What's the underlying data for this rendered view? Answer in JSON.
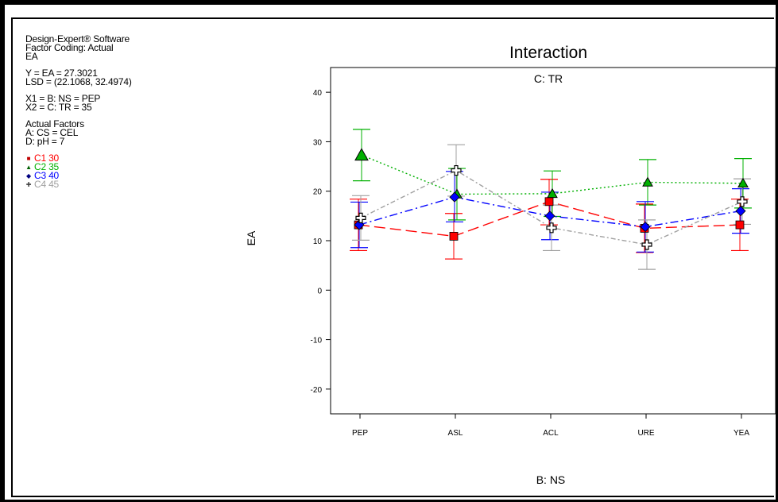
{
  "info": {
    "lines_top": [
      "Design-Expert® Software",
      "Factor Coding: Actual",
      "EA"
    ],
    "lines_y": [
      "Y = EA = 27.3021",
      "LSD = (22.1068, 32.4974)"
    ],
    "lines_x": [
      "X1 = B: NS = PEP",
      "X2 = C: TR = 35"
    ],
    "lines_factors": [
      "Actual Factors",
      "A: CS = CEL",
      "D: pH = 7"
    ]
  },
  "legend": [
    {
      "label": "C1 30",
      "color": "#ff0000",
      "marker": "square"
    },
    {
      "label": "C2 35",
      "color": "#00b000",
      "marker": "triangle"
    },
    {
      "label": "C3 40",
      "color": "#0000ff",
      "marker": "diamond"
    },
    {
      "label": "C4 45",
      "color": "#a0a0a0",
      "marker": "cross"
    }
  ],
  "chart_data": {
    "type": "line",
    "title": "Interaction",
    "subtitle": "C: TR",
    "xlabel": "B: NS",
    "ylabel": "EA",
    "categories": [
      "PEP",
      "ASL",
      "ACL",
      "URE",
      "YEA"
    ],
    "ylim": [
      -25,
      45
    ],
    "yticks": [
      -20,
      -10,
      0,
      10,
      20,
      30,
      40
    ],
    "series": [
      {
        "name": "C1 30",
        "color": "#ff0000",
        "marker": "square",
        "dash": "14 6",
        "values": [
          13.2,
          10.9,
          17.9,
          12.5,
          13.2
        ],
        "lower": [
          8.0,
          6.3,
          13.2,
          7.6,
          8.0
        ],
        "upper": [
          18.4,
          15.5,
          22.4,
          17.4,
          18.4
        ]
      },
      {
        "name": "C2 35",
        "color": "#00b000",
        "marker": "triangle",
        "dash": "2 3",
        "values": [
          27.3,
          19.4,
          19.5,
          21.8,
          21.6
        ],
        "lower": [
          22.1,
          14.2,
          14.9,
          17.2,
          16.6
        ],
        "upper": [
          32.5,
          24.6,
          24.1,
          26.4,
          26.6
        ]
      },
      {
        "name": "C3 40",
        "color": "#0000ff",
        "marker": "diamond",
        "dash": "10 4 2 4",
        "values": [
          13.2,
          18.8,
          15.0,
          12.8,
          16.0
        ],
        "lower": [
          8.6,
          13.8,
          10.2,
          7.7,
          11.5
        ],
        "upper": [
          17.8,
          24.0,
          19.8,
          17.9,
          20.5
        ]
      },
      {
        "name": "C4 45",
        "color": "#a0a0a0",
        "marker": "cross",
        "dash": "6 3 2 3",
        "values": [
          14.6,
          24.2,
          12.6,
          9.2,
          17.9
        ],
        "lower": [
          10.1,
          19.0,
          8.0,
          4.2,
          13.3
        ],
        "upper": [
          19.1,
          29.4,
          17.2,
          14.2,
          22.5
        ]
      }
    ]
  }
}
